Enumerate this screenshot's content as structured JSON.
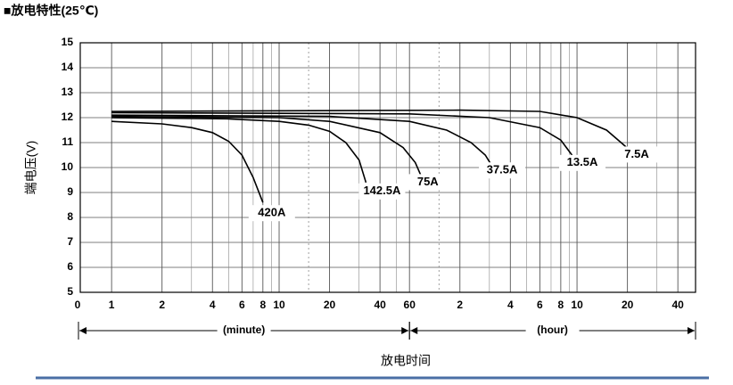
{
  "chart_data": {
    "type": "line",
    "title": "■放电特性(25℃)",
    "ylabel": "端电压(V)",
    "xlabel": "放电时间",
    "x_origin_label": "0",
    "x_unit_labels": [
      "(minute)",
      "(hour)"
    ],
    "xscale": "log",
    "xlim": [
      0.65,
      3060
    ],
    "xticks": [
      1,
      2,
      4,
      6,
      8,
      10,
      20,
      40,
      60,
      {
        "value": 120,
        "label": "2"
      },
      {
        "value": 240,
        "label": "4"
      },
      {
        "value": 360,
        "label": "6"
      },
      {
        "value": 480,
        "label": "8"
      },
      {
        "value": 600,
        "label": "10"
      },
      {
        "value": 1200,
        "label": "20"
      },
      {
        "value": 2400,
        "label": "40"
      }
    ],
    "xgrid_minor": [
      3,
      5,
      7,
      9,
      30,
      50,
      180,
      300,
      420,
      540,
      1800
    ],
    "xgrid_dotted": [
      15,
      90
    ],
    "ylim": [
      5,
      15
    ],
    "yticks": [
      5,
      6,
      7,
      8,
      9,
      10,
      11,
      12,
      13,
      14,
      15
    ],
    "grid": true,
    "series": [
      {
        "name": "420A",
        "color": "#000000",
        "x": [
          1,
          2,
          3,
          4,
          5,
          6,
          7,
          8
        ],
        "values": [
          11.85,
          11.75,
          11.6,
          11.4,
          11.05,
          10.5,
          9.6,
          8.6
        ]
      },
      {
        "name": "142.5A",
        "color": "#000000",
        "x": [
          1,
          5,
          10,
          15,
          20,
          25,
          30,
          33
        ],
        "values": [
          12.0,
          11.95,
          11.85,
          11.7,
          11.45,
          11.0,
          10.3,
          9.4
        ]
      },
      {
        "name": "75A",
        "color": "#000000",
        "x": [
          1,
          10,
          20,
          40,
          55,
          65,
          70
        ],
        "values": [
          12.05,
          12.0,
          11.85,
          11.4,
          10.8,
          10.2,
          9.7
        ]
      },
      {
        "name": "37.5A",
        "color": "#000000",
        "x": [
          1,
          20,
          60,
          100,
          140,
          170,
          185
        ],
        "values": [
          12.1,
          12.05,
          11.85,
          11.5,
          11.0,
          10.5,
          10.1
        ]
      },
      {
        "name": "13.5A",
        "color": "#000000",
        "x": [
          1,
          60,
          180,
          360,
          480,
          560,
          571
        ],
        "values": [
          12.2,
          12.15,
          12.0,
          11.6,
          11.1,
          10.5,
          10.4
        ]
      },
      {
        "name": "7.5A",
        "color": "#000000",
        "x": [
          1,
          120,
          360,
          600,
          900,
          1100,
          1236
        ],
        "values": [
          12.25,
          12.3,
          12.25,
          12.0,
          11.5,
          11.0,
          10.7
        ]
      }
    ]
  }
}
